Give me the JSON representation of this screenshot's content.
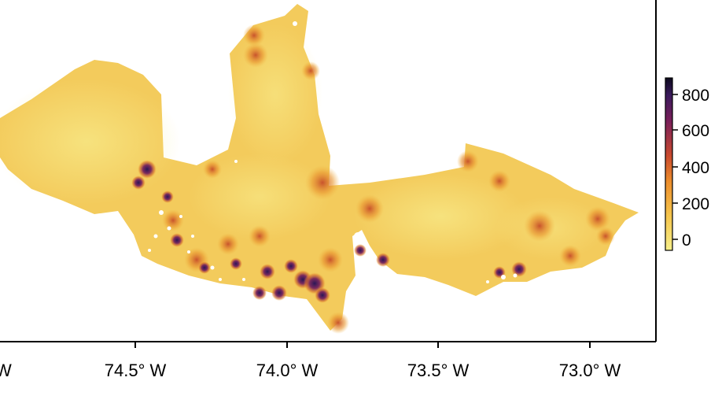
{
  "map": {
    "x_axis": {
      "tick_labels": [
        "W",
        "74.5° W",
        "74.0° W",
        "73.5° W",
        "73.0° W"
      ]
    }
  },
  "colorbar": {
    "tick_labels": [
      "800",
      "600",
      "400",
      "200",
      "0"
    ],
    "range": [
      0,
      880
    ],
    "colors": [
      "#f7ef8a",
      "#f5c54c",
      "#ec8d2c",
      "#c9492e",
      "#7a1f5a",
      "#3a1a5c",
      "#0d0a1e"
    ]
  },
  "colors": {
    "base_fill": "#f3cb5c",
    "light_fill": "#f6e27a",
    "hotspot_high": "#3c1b63",
    "hotspot_mid": "#c25a2c",
    "frame": "#000000"
  }
}
